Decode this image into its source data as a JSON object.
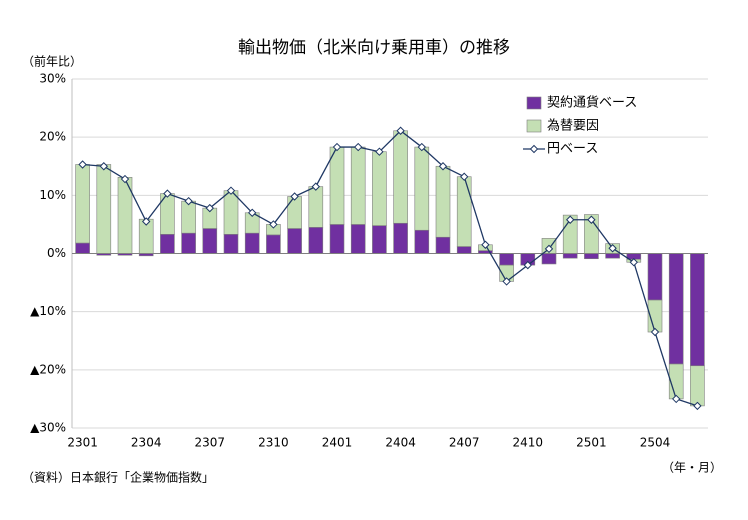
{
  "chart_data": {
    "type": "bar",
    "title": "輸出物価（北米向け乗用車）の推移",
    "y_label": "（前年比）",
    "x_label": "（年・月）",
    "source": "（資料）日本銀行「企業物価指数」",
    "categories": [
      "2301",
      null,
      null,
      "2304",
      null,
      null,
      "2307",
      null,
      null,
      "2310",
      null,
      null,
      "2401",
      null,
      null,
      "2404",
      null,
      null,
      "2407",
      null,
      null,
      "2410",
      null,
      null,
      "2501",
      null,
      null,
      "2504",
      null,
      null
    ],
    "series": [
      {
        "name": "契約通貨ベース",
        "color": "#7030a0",
        "kind": "bar",
        "values": [
          1.8,
          -0.3,
          -0.3,
          -0.4,
          3.3,
          3.5,
          4.3,
          3.3,
          3.5,
          3.2,
          4.3,
          4.5,
          5.0,
          5.0,
          4.8,
          5.2,
          4.0,
          2.8,
          1.2,
          0.5,
          -2.0,
          -2.0,
          -1.8,
          -0.8,
          -0.9,
          -0.8,
          -1.0,
          -8.0,
          -19.0,
          -19.3
        ]
      },
      {
        "name": "為替要因",
        "color": "#c4dfb4",
        "kind": "bar",
        "values": [
          13.5,
          15.3,
          13.1,
          5.9,
          7.0,
          5.5,
          3.5,
          7.5,
          3.5,
          1.8,
          5.5,
          7.0,
          13.3,
          13.3,
          12.7,
          15.9,
          14.3,
          12.2,
          12.0,
          1.0,
          -2.8,
          0,
          2.6,
          6.6,
          6.7,
          1.7,
          -0.5,
          -5.5,
          -6.0,
          -6.9
        ]
      },
      {
        "name": "円ベース",
        "color": "#1f3864",
        "kind": "line",
        "values": [
          15.3,
          15.0,
          12.8,
          5.5,
          10.3,
          9.0,
          7.8,
          10.8,
          7.0,
          5.0,
          9.8,
          11.5,
          18.3,
          18.3,
          17.5,
          21.1,
          18.3,
          15.0,
          13.2,
          1.5,
          -4.8,
          -2.0,
          0.8,
          5.8,
          5.8,
          0.9,
          -1.5,
          -13.5,
          -25.0,
          -26.2
        ]
      }
    ],
    "ylim": [
      -30,
      30
    ],
    "yticks": [
      {
        "value": -30,
        "label": "▲30%"
      },
      {
        "value": -20,
        "label": "▲20%"
      },
      {
        "value": -10,
        "label": "▲10%"
      },
      {
        "value": 0,
        "label": "0%"
      },
      {
        "value": 10,
        "label": "10%"
      },
      {
        "value": 20,
        "label": "20%"
      },
      {
        "value": 30,
        "label": "30%"
      }
    ],
    "grid": true
  }
}
